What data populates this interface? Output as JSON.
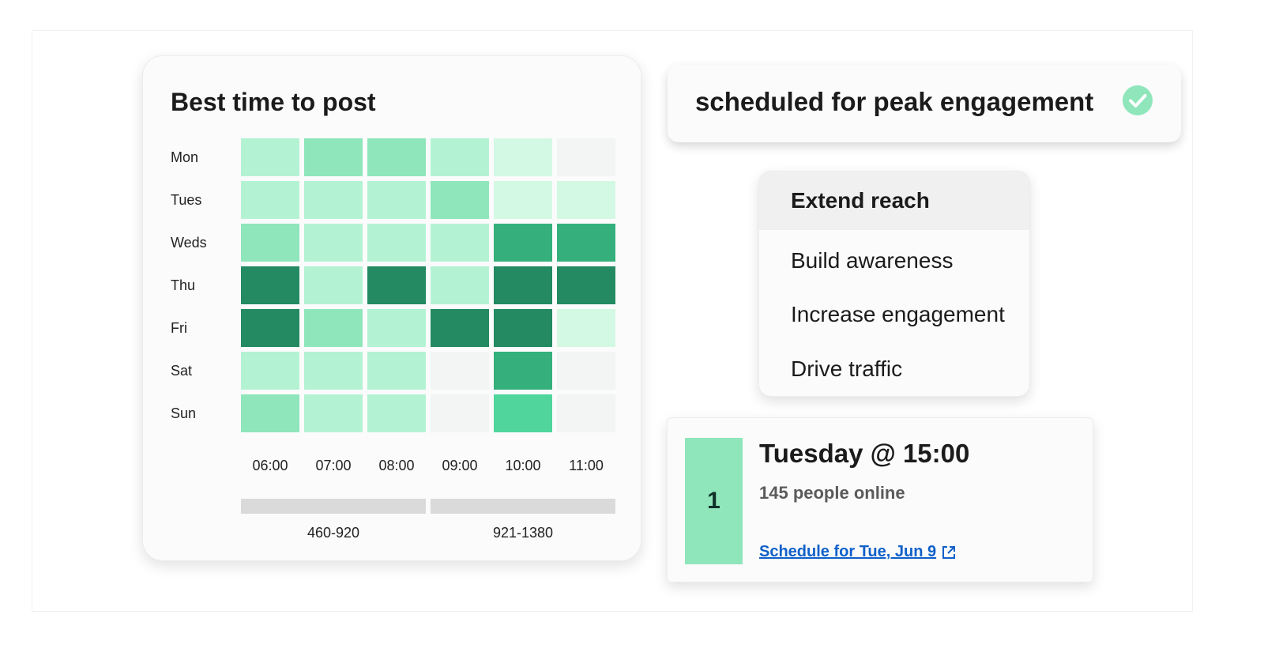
{
  "heatmap_card": {
    "title": "Best time to post"
  },
  "chart_data": {
    "type": "heatmap",
    "title": "Best time to post",
    "rows": [
      "Mon",
      "Tues",
      "Weds",
      "Thu",
      "Fri",
      "Sat",
      "Sun"
    ],
    "columns": [
      "06:00",
      "07:00",
      "08:00",
      "09:00",
      "10:00",
      "11:00"
    ],
    "intensity_scale": "0 = lowest engagement, 5 = highest engagement",
    "values": [
      [
        2,
        3,
        3,
        2,
        1,
        0
      ],
      [
        2,
        2,
        2,
        3,
        1,
        1
      ],
      [
        3,
        2,
        2,
        2,
        4,
        4
      ],
      [
        5,
        2,
        5,
        2,
        5,
        5
      ],
      [
        5,
        3,
        2,
        5,
        5,
        1
      ],
      [
        2,
        2,
        2,
        0,
        4,
        0
      ],
      [
        3,
        2,
        2,
        0,
        3,
        0
      ]
    ],
    "colors": {
      "0": "#f3f4f4",
      "1": "#d3f8e4",
      "2": "#b3f3d3",
      "3": "#8fe6bb",
      "4": "#35b07c",
      "5": "#238a62",
      "sun_10": "#50d69c"
    },
    "ranges": [
      {
        "label": "460-920"
      },
      {
        "label": "921-1380"
      }
    ],
    "range_bar_color": "#dadada"
  },
  "scheduled_banner": {
    "text": "scheduled for peak engagement",
    "icon": "check-circle-icon",
    "icon_color": "#8fe6bb"
  },
  "goal_menu": {
    "items": [
      {
        "label": "Extend reach",
        "selected": true
      },
      {
        "label": "Build awareness",
        "selected": false
      },
      {
        "label": "Increase engagement",
        "selected": false
      },
      {
        "label": "Drive traffic",
        "selected": false
      }
    ]
  },
  "recommendation": {
    "rank": "1",
    "title": "Tuesday @ 15:00",
    "subtitle": "145 people online",
    "link_label": "Schedule for Tue, Jun 9",
    "link_icon": "external-link-icon",
    "accent": "#8fe6bb",
    "link_color": "#1060c9"
  }
}
